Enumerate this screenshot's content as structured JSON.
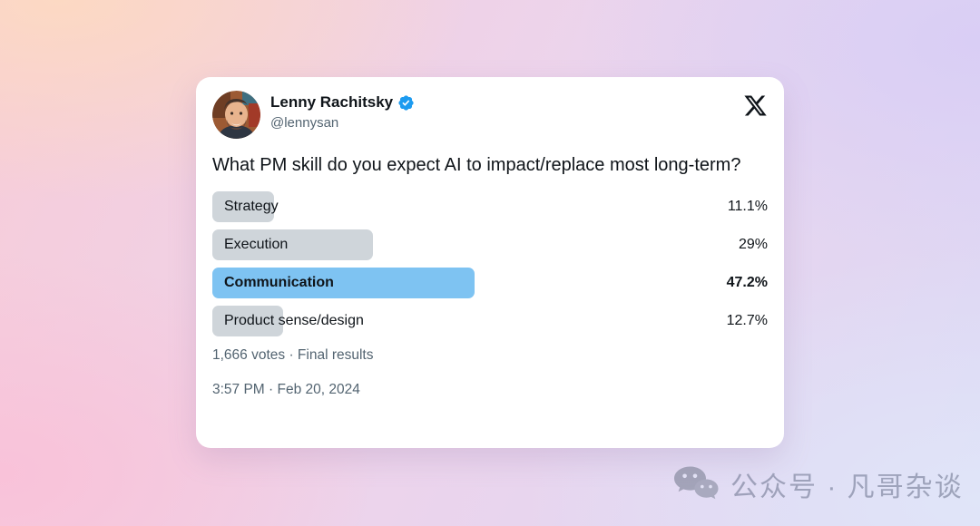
{
  "tweet": {
    "author": {
      "name": "Lenny Rachitsky",
      "handle": "@lennysan",
      "verified": true
    },
    "question": "What PM skill do you expect AI to impact/replace most long-term?",
    "poll": {
      "options": [
        {
          "label": "Strategy",
          "percent": "11.1%",
          "value": 11.1,
          "winner": false
        },
        {
          "label": "Execution",
          "percent": "29%",
          "value": 29,
          "winner": false
        },
        {
          "label": "Communication",
          "percent": "47.2%",
          "value": 47.2,
          "winner": true
        },
        {
          "label": "Product sense/design",
          "percent": "12.7%",
          "value": 12.7,
          "winner": false
        }
      ],
      "footer": "1,666 votes · Final results"
    },
    "timestamp": "3:57 PM · Feb 20, 2024"
  },
  "watermark": {
    "text": "公众号 · 凡哥杂谈"
  },
  "colors": {
    "verified_blue": "#1d9bf0",
    "winner_bar_blue": "#7ec3f2",
    "bar_gray": "#cfd5da",
    "text_primary": "#0f1419",
    "text_secondary": "#536471",
    "card_bg": "#ffffff"
  }
}
